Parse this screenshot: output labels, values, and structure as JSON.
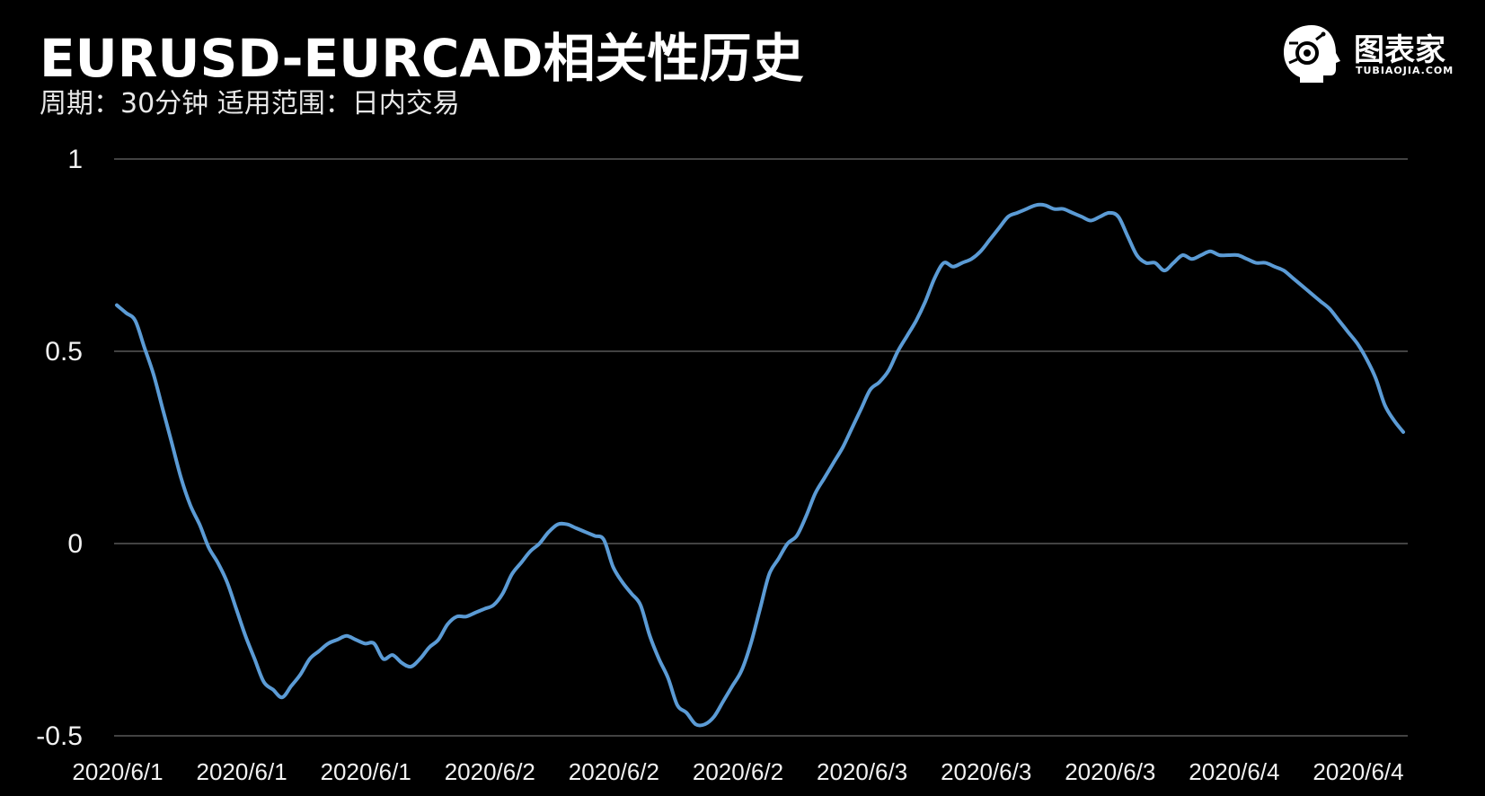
{
  "header": {
    "title": "EURUSD-EURCAD相关性历史",
    "subtitle": "周期：30分钟  适用范围：日内交易"
  },
  "logo": {
    "text": "图表家",
    "sub": "TUBIAOJIA.COM",
    "icon": "robot-head-icon"
  },
  "colors": {
    "background": "#000000",
    "line": "#5b9bd5",
    "grid": "#595959",
    "text": "#f2f2f2"
  },
  "chart_data": {
    "type": "line",
    "title": "EURUSD-EURCAD相关性历史",
    "ylim": [
      -0.5,
      1
    ],
    "yticks": [
      1,
      0.5,
      0,
      -0.5
    ],
    "ytick_labels": [
      "1",
      "0.5",
      "0",
      "-0.5"
    ],
    "xtick_labels": [
      "2020/6/1",
      "2020/6/1",
      "2020/6/1",
      "2020/6/2",
      "2020/6/2",
      "2020/6/2",
      "2020/6/3",
      "2020/6/3",
      "2020/6/3",
      "2020/6/4",
      "2020/6/4"
    ],
    "grid": true,
    "legend": "none",
    "series": [
      {
        "values": [
          0.62,
          0.6,
          0.58,
          0.51,
          0.44,
          0.35,
          0.26,
          0.17,
          0.1,
          0.05,
          -0.01,
          -0.05,
          -0.1,
          -0.17,
          -0.24,
          -0.3,
          -0.36,
          -0.38,
          -0.4,
          -0.37,
          -0.34,
          -0.3,
          -0.28,
          -0.26,
          -0.25,
          -0.24,
          -0.25,
          -0.26,
          -0.26,
          -0.3,
          -0.29,
          -0.31,
          -0.32,
          -0.3,
          -0.27,
          -0.25,
          -0.21,
          -0.19,
          -0.19,
          -0.18,
          -0.17,
          -0.16,
          -0.13,
          -0.08,
          -0.05,
          -0.02,
          0.0,
          0.03,
          0.05,
          0.05,
          0.04,
          0.03,
          0.02,
          0.01,
          -0.06,
          -0.1,
          -0.13,
          -0.16,
          -0.24,
          -0.3,
          -0.35,
          -0.42,
          -0.44,
          -0.47,
          -0.47,
          -0.45,
          -0.41,
          -0.37,
          -0.33,
          -0.26,
          -0.17,
          -0.08,
          -0.04,
          0.0,
          0.02,
          0.07,
          0.13,
          0.17,
          0.21,
          0.25,
          0.3,
          0.35,
          0.4,
          0.42,
          0.45,
          0.5,
          0.54,
          0.58,
          0.63,
          0.69,
          0.73,
          0.72,
          0.73,
          0.74,
          0.76,
          0.79,
          0.82,
          0.85,
          0.86,
          0.87,
          0.88,
          0.88,
          0.87,
          0.87,
          0.86,
          0.85,
          0.84,
          0.85,
          0.86,
          0.85,
          0.8,
          0.75,
          0.73,
          0.73,
          0.71,
          0.73,
          0.75,
          0.74,
          0.75,
          0.76,
          0.75,
          0.75,
          0.75,
          0.74,
          0.73,
          0.73,
          0.72,
          0.71,
          0.69,
          0.67,
          0.65,
          0.63,
          0.61,
          0.58,
          0.55,
          0.52,
          0.48,
          0.43,
          0.36,
          0.32,
          0.29
        ]
      }
    ]
  }
}
